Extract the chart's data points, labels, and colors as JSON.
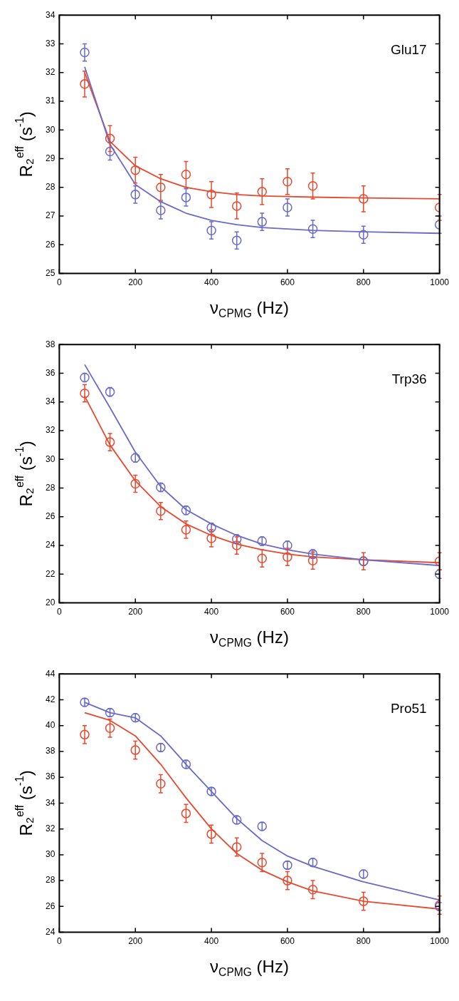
{
  "chart_data": [
    {
      "type": "scatter",
      "annotations": [
        "Glu17"
      ],
      "xlabel": "ν$_{CPMG}$ (Hz)",
      "ylabel": "R₂$^{eff}$ (s$^{-1}$)",
      "xlim": [
        0,
        1000
      ],
      "xticks": [
        0,
        200,
        400,
        600,
        800,
        1000
      ],
      "ylim": [
        25,
        34
      ],
      "yticks": [
        25,
        26,
        27,
        28,
        29,
        30,
        31,
        32,
        33,
        34
      ],
      "grid": false,
      "legend": false,
      "x": [
        66.7,
        133.3,
        200,
        266.7,
        333.3,
        400,
        466.7,
        533.3,
        600,
        666.7,
        800,
        1000
      ],
      "series": [
        {
          "type": "scatter",
          "marker": "circle",
          "color": "#6a6ac8",
          "values": [
            32.7,
            29.25,
            27.75,
            27.2,
            27.65,
            26.5,
            26.15,
            26.8,
            27.3,
            26.55,
            26.35,
            26.7
          ],
          "errors": [
            0.3,
            0.3,
            0.3,
            0.3,
            0.3,
            0.3,
            0.3,
            0.3,
            0.3,
            0.3,
            0.3,
            0.3
          ]
        },
        {
          "type": "scatter",
          "marker": "circle",
          "color": "#e8482e",
          "values": [
            31.6,
            29.7,
            28.6,
            28.0,
            28.45,
            27.75,
            27.35,
            27.85,
            28.2,
            28.05,
            27.6,
            27.3
          ],
          "errors": [
            0.45,
            0.45,
            0.45,
            0.45,
            0.45,
            0.45,
            0.45,
            0.45,
            0.45,
            0.45,
            0.45,
            0.45
          ]
        },
        {
          "type": "line",
          "color": "#6a6ac8",
          "values": [
            32.2,
            29.5,
            28.1,
            27.5,
            27.1,
            26.85,
            26.7,
            26.6,
            26.55,
            26.5,
            26.45,
            26.4
          ]
        },
        {
          "type": "line",
          "color": "#e8482e",
          "values": [
            32.0,
            29.6,
            28.75,
            28.3,
            28.0,
            27.85,
            27.75,
            27.7,
            27.68,
            27.66,
            27.63,
            27.6
          ]
        }
      ]
    },
    {
      "type": "scatter",
      "annotations": [
        "Trp36"
      ],
      "xlabel": "ν$_{CPMG}$ (Hz)",
      "ylabel": "R₂$^{eff}$ (s$^{-1}$)",
      "xlim": [
        0,
        1000
      ],
      "xticks": [
        0,
        200,
        400,
        600,
        800,
        1000
      ],
      "ylim": [
        20,
        38
      ],
      "yticks": [
        20,
        22,
        24,
        26,
        28,
        30,
        32,
        34,
        36,
        38
      ],
      "grid": false,
      "legend": false,
      "x": [
        66.7,
        133.3,
        200,
        266.7,
        333.3,
        400,
        466.7,
        533.3,
        600,
        666.7,
        800,
        1000
      ],
      "series": [
        {
          "type": "scatter",
          "marker": "circle",
          "color": "#6a6ac8",
          "values": [
            35.7,
            34.7,
            30.1,
            28.05,
            26.45,
            25.25,
            24.45,
            24.3,
            24.0,
            23.4,
            22.9,
            22.0
          ],
          "errors": [
            0.3,
            0.3,
            0.3,
            0.3,
            0.3,
            0.3,
            0.3,
            0.3,
            0.3,
            0.3,
            0.3,
            0.3
          ]
        },
        {
          "type": "scatter",
          "marker": "circle",
          "color": "#e8482e",
          "values": [
            34.6,
            31.2,
            28.3,
            26.4,
            25.1,
            24.5,
            24.0,
            23.1,
            23.2,
            22.95,
            22.9,
            22.9
          ],
          "errors": [
            0.6,
            0.6,
            0.6,
            0.6,
            0.6,
            0.6,
            0.6,
            0.6,
            0.6,
            0.6,
            0.6,
            0.6
          ]
        },
        {
          "type": "line",
          "color": "#6a6ac8",
          "values": [
            36.6,
            33.6,
            30.5,
            28.1,
            26.5,
            25.5,
            24.7,
            24.1,
            23.7,
            23.4,
            23.0,
            22.6
          ]
        },
        {
          "type": "line",
          "color": "#e8482e",
          "values": [
            34.4,
            31.0,
            28.5,
            26.7,
            25.5,
            24.7,
            24.1,
            23.7,
            23.4,
            23.2,
            23.0,
            22.8
          ]
        }
      ]
    },
    {
      "type": "scatter",
      "annotations": [
        "Pro51"
      ],
      "xlabel": "ν$_{CPMG}$ (Hz)",
      "ylabel": "R₂$^{eff}$ (s$^{-1}$)",
      "xlim": [
        0,
        1000
      ],
      "xticks": [
        0,
        200,
        400,
        600,
        800,
        1000
      ],
      "ylim": [
        24,
        44
      ],
      "yticks": [
        24,
        26,
        28,
        30,
        32,
        34,
        36,
        38,
        40,
        42,
        44
      ],
      "grid": false,
      "legend": false,
      "x": [
        66.7,
        133.3,
        200,
        266.7,
        333.3,
        400,
        466.7,
        533.3,
        600,
        666.7,
        800,
        1000
      ],
      "series": [
        {
          "type": "scatter",
          "marker": "circle",
          "color": "#6a6ac8",
          "values": [
            41.8,
            41.0,
            40.6,
            38.3,
            37.0,
            34.9,
            32.7,
            32.2,
            29.2,
            29.4,
            28.5,
            26.0
          ],
          "errors": [
            0.3,
            0.3,
            0.3,
            0.3,
            0.3,
            0.3,
            0.3,
            0.3,
            0.3,
            0.3,
            0.3,
            0.3
          ]
        },
        {
          "type": "scatter",
          "marker": "circle",
          "color": "#e8482e",
          "values": [
            39.3,
            39.8,
            38.1,
            35.5,
            33.2,
            31.6,
            30.6,
            29.4,
            28.0,
            27.3,
            26.4,
            26.1
          ],
          "errors": [
            0.7,
            0.7,
            0.7,
            0.7,
            0.7,
            0.7,
            0.7,
            0.7,
            0.7,
            0.7,
            0.7,
            0.7
          ]
        },
        {
          "type": "line",
          "color": "#6a6ac8",
          "values": [
            41.8,
            41.0,
            40.6,
            39.2,
            37.0,
            34.9,
            32.8,
            31.1,
            29.9,
            29.1,
            27.9,
            26.5
          ]
        },
        {
          "type": "line",
          "color": "#e8482e",
          "values": [
            41.0,
            40.4,
            39.2,
            37.0,
            34.4,
            32.0,
            30.1,
            28.8,
            27.9,
            27.2,
            26.4,
            25.8
          ]
        }
      ]
    }
  ]
}
